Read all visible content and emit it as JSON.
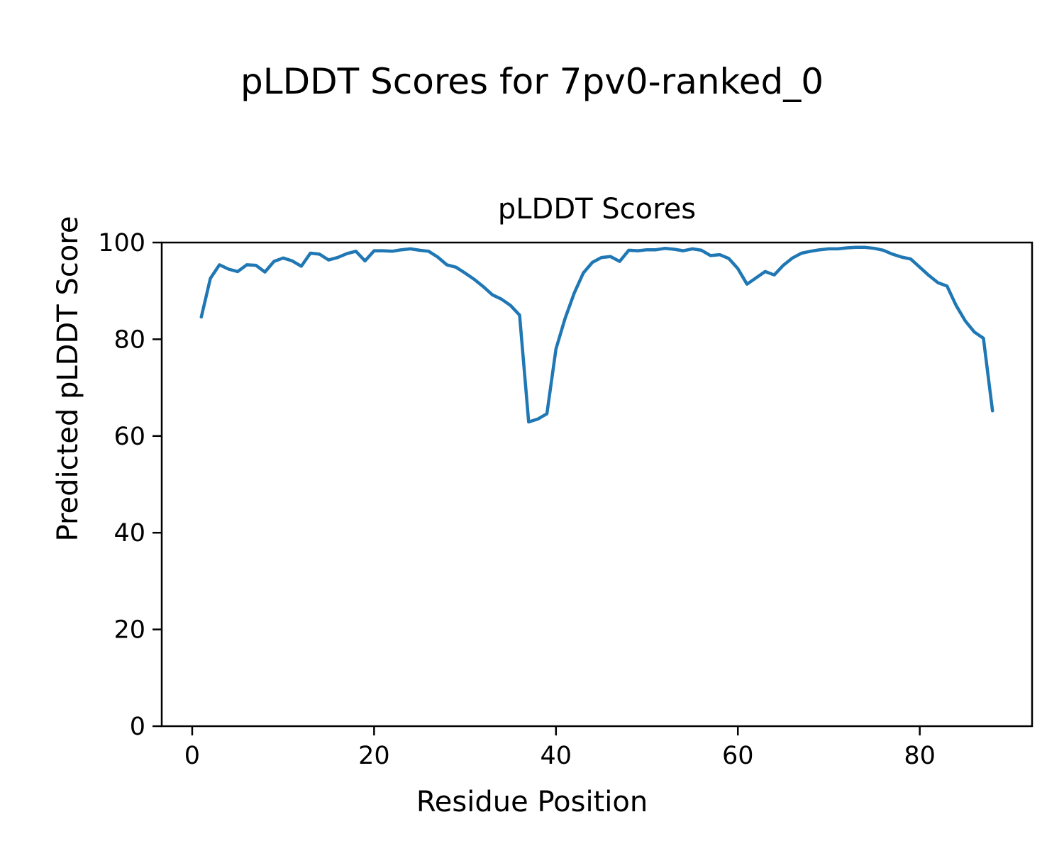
{
  "figure": {
    "suptitle": "pLDDT Scores for 7pv0-ranked_0"
  },
  "chart_data": {
    "type": "line",
    "title": "pLDDT Scores",
    "suptitle": "pLDDT Scores for 7pv0-ranked_0",
    "xlabel": "Residue Position",
    "ylabel": "Predicted pLDDT Score",
    "xlim": [
      -3.35,
      92.35
    ],
    "ylim": [
      0,
      100
    ],
    "xticks": [
      0,
      20,
      40,
      60,
      80
    ],
    "yticks": [
      0,
      20,
      40,
      60,
      80,
      100
    ],
    "grid": false,
    "legend": "none",
    "line_color": "#1f77b4",
    "series": [
      {
        "name": "pLDDT",
        "x": [
          1,
          2,
          3,
          4,
          5,
          6,
          7,
          8,
          9,
          10,
          11,
          12,
          13,
          14,
          15,
          16,
          17,
          18,
          19,
          20,
          21,
          22,
          23,
          24,
          25,
          26,
          27,
          28,
          29,
          30,
          31,
          32,
          33,
          34,
          35,
          36,
          37,
          38,
          39,
          40,
          41,
          42,
          43,
          44,
          45,
          46,
          47,
          48,
          49,
          50,
          51,
          52,
          53,
          54,
          55,
          56,
          57,
          58,
          59,
          60,
          61,
          62,
          63,
          64,
          65,
          66,
          67,
          68,
          69,
          70,
          71,
          72,
          73,
          74,
          75,
          76,
          77,
          78,
          79,
          80,
          81,
          82,
          83,
          84,
          85,
          86,
          87,
          88
        ],
        "values": [
          84.6,
          92.6,
          95.4,
          94.5,
          94.0,
          95.4,
          95.3,
          93.9,
          96.1,
          96.8,
          96.2,
          95.1,
          97.8,
          97.6,
          96.4,
          96.9,
          97.7,
          98.2,
          96.2,
          98.3,
          98.3,
          98.2,
          98.5,
          98.7,
          98.4,
          98.2,
          97.0,
          95.4,
          94.9,
          93.7,
          92.4,
          90.9,
          89.2,
          88.3,
          87.0,
          85.0,
          62.9,
          63.5,
          64.6,
          78.0,
          84.3,
          89.5,
          93.7,
          95.9,
          96.9,
          97.1,
          96.1,
          98.4,
          98.3,
          98.5,
          98.5,
          98.8,
          98.6,
          98.3,
          98.7,
          98.4,
          97.3,
          97.5,
          96.7,
          94.6,
          91.4,
          92.7,
          94.0,
          93.3,
          95.3,
          96.8,
          97.8,
          98.2,
          98.5,
          98.7,
          98.7,
          98.9,
          99.0,
          99.0,
          98.8,
          98.4,
          97.6,
          97.0,
          96.6,
          94.9,
          93.2,
          91.7,
          91.0,
          87.0,
          83.8,
          81.5,
          80.2,
          65.2
        ]
      }
    ]
  }
}
